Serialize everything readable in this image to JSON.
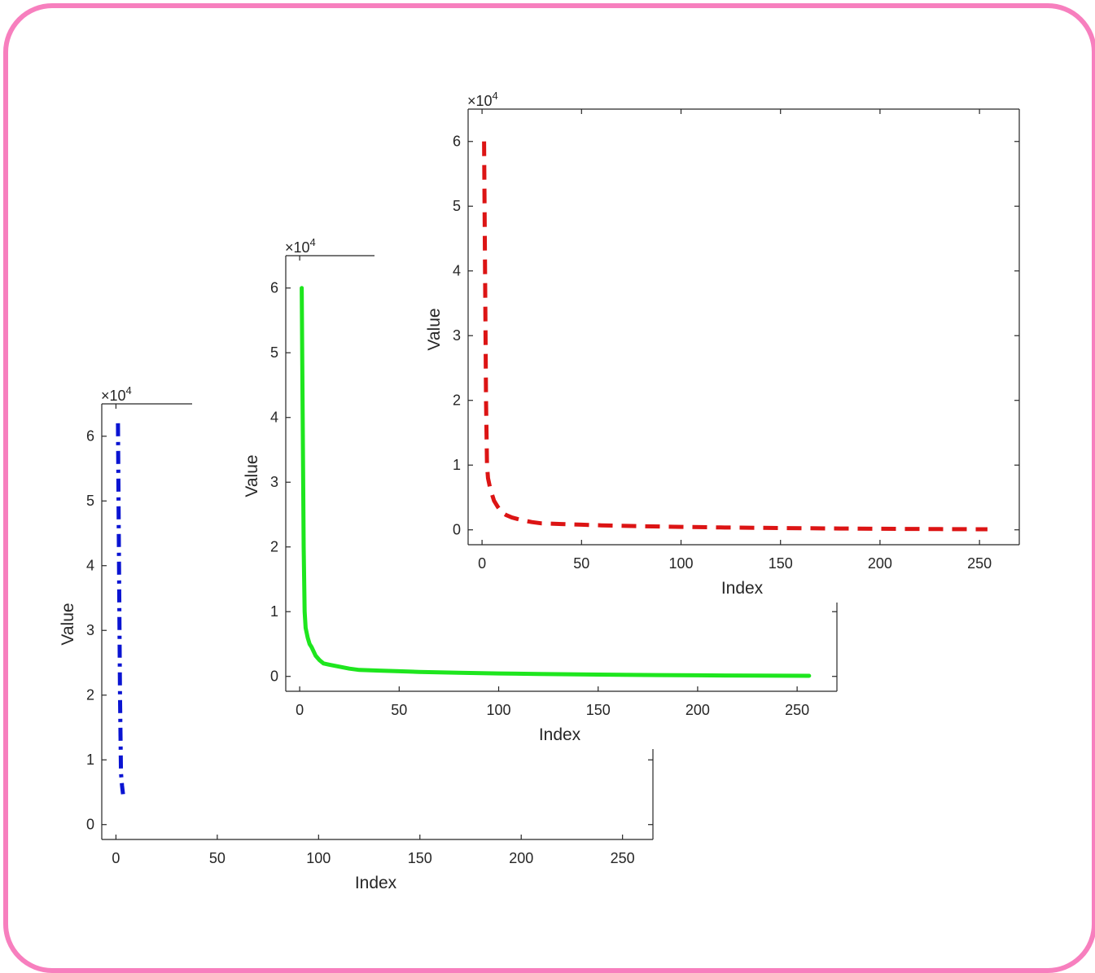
{
  "chart_data": [
    {
      "type": "line",
      "name": "back",
      "xlabel": "Index",
      "ylabel": "Value",
      "exponent_label": "×10",
      "exponent_power": "4",
      "xlim": [
        -7,
        265
      ],
      "ylim": [
        -2300,
        65000
      ],
      "xticks": [
        "0",
        "50",
        "100",
        "150",
        "200",
        "250"
      ],
      "yticks": [
        "0",
        "1",
        "2",
        "3",
        "4",
        "5",
        "6"
      ],
      "line_style": "dashdot",
      "color": "#0a14d2",
      "series": [
        {
          "x": [
            1,
            1.5,
            2,
            2.5,
            3,
            3.5
          ],
          "values": [
            62000,
            40000,
            20000,
            8000,
            6000,
            4700
          ]
        }
      ]
    },
    {
      "type": "line",
      "name": "middle",
      "xlabel": "Index",
      "ylabel": "Value",
      "exponent_label": "×10",
      "exponent_power": "4",
      "xlim": [
        -7,
        270
      ],
      "ylim": [
        -2300,
        65000
      ],
      "xticks": [
        "0",
        "50",
        "100",
        "150",
        "200",
        "250"
      ],
      "yticks": [
        "0",
        "1",
        "2",
        "3",
        "4",
        "5",
        "6"
      ],
      "line_style": "solid",
      "color": "#1ee61e",
      "series": [
        {
          "x": [
            1,
            1.5,
            2,
            2.5,
            3,
            4,
            5,
            6,
            8,
            10,
            12,
            15,
            20,
            25,
            30,
            40,
            50,
            60,
            80,
            100,
            120,
            150,
            180,
            200,
            230,
            256
          ],
          "values": [
            60000,
            40000,
            20000,
            10000,
            7500,
            6000,
            5000,
            4500,
            3200,
            2500,
            2000,
            1800,
            1500,
            1200,
            1000,
            900,
            800,
            700,
            550,
            450,
            370,
            280,
            200,
            170,
            120,
            90
          ]
        }
      ]
    },
    {
      "type": "line",
      "name": "front",
      "xlabel": "Index",
      "ylabel": "Value",
      "exponent_label": "×10",
      "exponent_power": "4",
      "xlim": [
        -7,
        270
      ],
      "ylim": [
        -2300,
        65000
      ],
      "xticks": [
        "0",
        "50",
        "100",
        "150",
        "200",
        "250"
      ],
      "yticks": [
        "0",
        "1",
        "2",
        "3",
        "4",
        "5",
        "6"
      ],
      "line_style": "dashed",
      "color": "#dc1414",
      "series": [
        {
          "x": [
            1,
            1.5,
            2,
            2.5,
            3,
            4,
            5,
            6,
            8,
            10,
            12,
            15,
            20,
            25,
            30,
            40,
            50,
            60,
            80,
            100,
            120,
            150,
            180,
            200,
            230,
            254
          ],
          "values": [
            60000,
            40000,
            20000,
            10000,
            8000,
            6500,
            5500,
            4500,
            3500,
            2700,
            2300,
            1900,
            1500,
            1200,
            1000,
            900,
            800,
            700,
            550,
            450,
            370,
            280,
            200,
            170,
            120,
            90
          ]
        }
      ]
    }
  ]
}
